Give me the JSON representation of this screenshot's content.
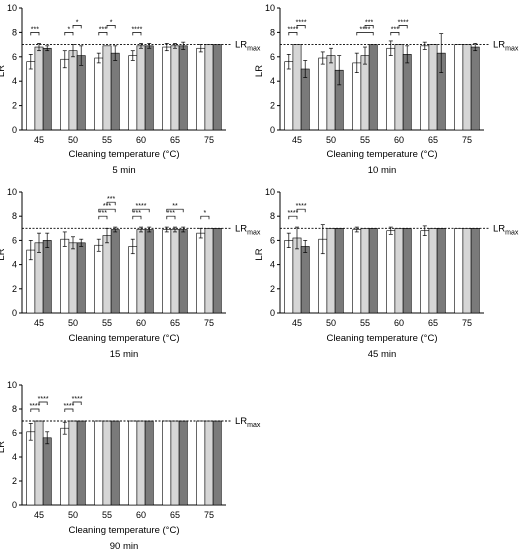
{
  "figure": {
    "series_colors": [
      "#ffffff",
      "#d6d6d6",
      "#7a7a7a"
    ],
    "refline_label_main": "LR",
    "refline_label_sub": "max"
  },
  "chart_data": [
    {
      "type": "bar",
      "title": "5 min",
      "xlabel": "Cleaning temperature (°C)",
      "ylabel": "LR",
      "ylim": [
        0,
        10
      ],
      "yticks": [
        0,
        2,
        4,
        6,
        8,
        10
      ],
      "categories": [
        "45",
        "50",
        "55",
        "60",
        "65",
        "75"
      ],
      "refline": 7,
      "series": [
        {
          "values": [
            5.6,
            5.8,
            5.9,
            6.1,
            6.8,
            6.7
          ],
          "errors": [
            0.6,
            0.7,
            0.4,
            0.4,
            0.3,
            0.3
          ]
        },
        {
          "values": [
            6.8,
            6.5,
            6.9,
            6.9,
            6.9,
            7.0
          ],
          "errors": [
            0.3,
            0.5,
            0.1,
            0.2,
            0.2,
            0.1
          ]
        },
        {
          "values": [
            6.7,
            6.1,
            6.3,
            6.9,
            6.9,
            7.0
          ],
          "errors": [
            0.2,
            0.8,
            0.6,
            0.2,
            0.3,
            0.1
          ]
        }
      ],
      "significance": [
        {
          "category": 0,
          "from": 0,
          "to": 1,
          "label": "***"
        },
        {
          "category": 1,
          "from": 0,
          "to": 1,
          "label": "*"
        },
        {
          "category": 1,
          "from": 1,
          "to": 2,
          "label": "*"
        },
        {
          "category": 2,
          "from": 0,
          "to": 1,
          "label": "***"
        },
        {
          "category": 2,
          "from": 1,
          "to": 2,
          "label": "*"
        },
        {
          "category": 3,
          "from": 0,
          "to": 1,
          "label": "****"
        }
      ]
    },
    {
      "type": "bar",
      "title": "10 min",
      "xlabel": "Cleaning temperature (°C)",
      "ylabel": "LR",
      "ylim": [
        0,
        10
      ],
      "yticks": [
        0,
        2,
        4,
        6,
        8,
        10
      ],
      "categories": [
        "45",
        "50",
        "55",
        "60",
        "65",
        "75"
      ],
      "refline": 7,
      "series": [
        {
          "values": [
            5.6,
            5.9,
            5.5,
            6.7,
            6.9,
            7.0
          ],
          "errors": [
            0.6,
            0.5,
            0.8,
            0.6,
            0.3,
            0.1
          ]
        },
        {
          "values": [
            7.0,
            6.1,
            6.1,
            7.0,
            7.0,
            7.0
          ],
          "errors": [
            0.1,
            0.6,
            0.7,
            0.1,
            0.1,
            0.1
          ]
        },
        {
          "values": [
            5.0,
            4.9,
            7.0,
            6.2,
            6.3,
            6.8
          ],
          "errors": [
            0.7,
            1.2,
            0.1,
            0.7,
            1.6,
            0.3
          ]
        }
      ],
      "significance": [
        {
          "category": 0,
          "from": 0,
          "to": 1,
          "label": "****"
        },
        {
          "category": 0,
          "from": 1,
          "to": 2,
          "label": "****"
        },
        {
          "category": 2,
          "from": 0,
          "to": 2,
          "label": "****"
        },
        {
          "category": 2,
          "from": 1,
          "to": 2,
          "label": "***"
        },
        {
          "category": 3,
          "from": 0,
          "to": 1,
          "label": "***"
        },
        {
          "category": 3,
          "from": 1,
          "to": 2,
          "label": "****"
        }
      ]
    },
    {
      "type": "bar",
      "title": "15 min",
      "xlabel": "Cleaning temperature (°C)",
      "ylabel": "LR",
      "ylim": [
        0,
        10
      ],
      "yticks": [
        0,
        2,
        4,
        6,
        8,
        10
      ],
      "categories": [
        "45",
        "50",
        "55",
        "60",
        "65",
        "75"
      ],
      "refline": 7,
      "series": [
        {
          "values": [
            5.2,
            6.1,
            5.6,
            5.5,
            6.9,
            6.6
          ],
          "errors": [
            0.8,
            0.6,
            0.5,
            0.6,
            0.2,
            0.4
          ]
        },
        {
          "values": [
            5.8,
            5.8,
            6.4,
            6.9,
            6.9,
            7.0
          ],
          "errors": [
            0.8,
            0.5,
            0.6,
            0.2,
            0.2,
            0.1
          ]
        },
        {
          "values": [
            6.0,
            5.8,
            6.9,
            6.9,
            6.9,
            7.0
          ],
          "errors": [
            0.6,
            0.3,
            0.2,
            0.2,
            0.2,
            0.1
          ]
        }
      ],
      "significance": [
        {
          "category": 2,
          "from": 0,
          "to": 1,
          "label": "***"
        },
        {
          "category": 2,
          "from": 0,
          "to": 2,
          "label": "***"
        },
        {
          "category": 2,
          "from": 1,
          "to": 2,
          "label": "***"
        },
        {
          "category": 3,
          "from": 0,
          "to": 1,
          "label": "***"
        },
        {
          "category": 3,
          "from": 0,
          "to": 2,
          "label": "****"
        },
        {
          "category": 4,
          "from": 0,
          "to": 1,
          "label": "***"
        },
        {
          "category": 4,
          "from": 0,
          "to": 2,
          "label": "**"
        },
        {
          "category": 5,
          "from": 0,
          "to": 1,
          "label": "*"
        }
      ]
    },
    {
      "type": "bar",
      "title": "45 min",
      "xlabel": "Cleaning temperature (°C)",
      "ylabel": "LR",
      "ylim": [
        0,
        10
      ],
      "yticks": [
        0,
        2,
        4,
        6,
        8,
        10
      ],
      "categories": [
        "45",
        "50",
        "55",
        "60",
        "65",
        "75"
      ],
      "refline": 7,
      "series": [
        {
          "values": [
            6.0,
            6.1,
            6.9,
            6.8,
            6.8,
            7.0
          ],
          "errors": [
            0.6,
            1.2,
            0.2,
            0.3,
            0.4,
            0.1
          ]
        },
        {
          "values": [
            6.2,
            7.0,
            7.0,
            7.0,
            7.0,
            7.0
          ],
          "errors": [
            0.9,
            0.1,
            0.1,
            0.1,
            0.1,
            0.1
          ]
        },
        {
          "values": [
            5.5,
            7.0,
            7.0,
            7.0,
            7.0,
            7.0
          ],
          "errors": [
            0.5,
            0.1,
            0.1,
            0.1,
            0.1,
            0.1
          ]
        }
      ],
      "significance": [
        {
          "category": 0,
          "from": 0,
          "to": 1,
          "label": "****"
        },
        {
          "category": 0,
          "from": 1,
          "to": 2,
          "label": "****"
        }
      ]
    },
    {
      "type": "bar",
      "title": "90 min",
      "xlabel": "Cleaning temperature (°C)",
      "ylabel": "LR",
      "ylim": [
        0,
        10
      ],
      "yticks": [
        0,
        2,
        4,
        6,
        8,
        10
      ],
      "categories": [
        "45",
        "50",
        "55",
        "60",
        "65",
        "75"
      ],
      "refline": 7,
      "series": [
        {
          "values": [
            6.1,
            6.4,
            7.0,
            7.0,
            7.0,
            7.0
          ],
          "errors": [
            0.7,
            0.5,
            0.1,
            0.1,
            0.1,
            0.1
          ]
        },
        {
          "values": [
            7.0,
            7.0,
            7.0,
            7.0,
            7.0,
            7.0
          ],
          "errors": [
            0.1,
            0.1,
            0.1,
            0.1,
            0.1,
            0.1
          ]
        },
        {
          "values": [
            5.6,
            7.0,
            7.0,
            7.0,
            7.0,
            7.0
          ],
          "errors": [
            0.5,
            0.1,
            0.1,
            0.1,
            0.1,
            0.1
          ]
        }
      ],
      "significance": [
        {
          "category": 0,
          "from": 0,
          "to": 1,
          "label": "****"
        },
        {
          "category": 0,
          "from": 1,
          "to": 2,
          "label": "****"
        },
        {
          "category": 1,
          "from": 0,
          "to": 1,
          "label": "****"
        },
        {
          "category": 1,
          "from": 1,
          "to": 2,
          "label": "****"
        }
      ]
    }
  ]
}
